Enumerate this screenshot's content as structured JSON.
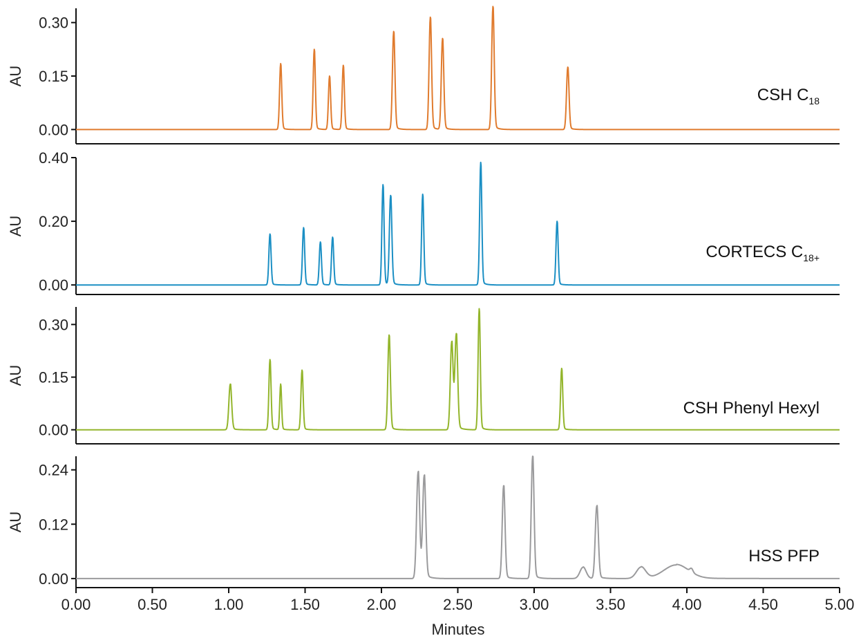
{
  "chart_data": {
    "type": "line",
    "xlabel": "Minutes",
    "xlim": [
      0,
      5
    ],
    "x_ticks": [
      "0.00",
      "0.50",
      "1.00",
      "1.50",
      "2.00",
      "2.50",
      "3.00",
      "3.50",
      "4.00",
      "4.50",
      "5.00"
    ],
    "panels": [
      {
        "label": "CSH C",
        "label_subscript": "18",
        "color": "#E07B2E",
        "ylabel": "AU",
        "ylim": [
          -0.04,
          0.34
        ],
        "y_ticks": [
          0.0,
          0.15,
          0.3
        ],
        "y_tick_labels": [
          "0.00",
          "0.15",
          "0.30"
        ],
        "peaks": [
          {
            "rt": 1.34,
            "height": 0.185,
            "width": 0.007
          },
          {
            "rt": 1.56,
            "height": 0.225,
            "width": 0.007
          },
          {
            "rt": 1.66,
            "height": 0.15,
            "width": 0.007
          },
          {
            "rt": 1.75,
            "height": 0.18,
            "width": 0.007
          },
          {
            "rt": 2.08,
            "height": 0.275,
            "width": 0.008
          },
          {
            "rt": 2.32,
            "height": 0.315,
            "width": 0.008
          },
          {
            "rt": 2.4,
            "height": 0.255,
            "width": 0.008
          },
          {
            "rt": 2.73,
            "height": 0.345,
            "width": 0.008
          },
          {
            "rt": 3.22,
            "height": 0.175,
            "width": 0.008
          }
        ]
      },
      {
        "label": "CORTECS C",
        "label_subscript": "18+",
        "color": "#1B8FC4",
        "ylabel": "AU",
        "ylim": [
          -0.03,
          0.4
        ],
        "y_ticks": [
          0.0,
          0.2,
          0.4
        ],
        "y_tick_labels": [
          "0.00",
          "0.20",
          "0.40"
        ],
        "peaks": [
          {
            "rt": 1.27,
            "height": 0.16,
            "width": 0.007
          },
          {
            "rt": 1.49,
            "height": 0.18,
            "width": 0.007
          },
          {
            "rt": 1.6,
            "height": 0.135,
            "width": 0.007
          },
          {
            "rt": 1.68,
            "height": 0.15,
            "width": 0.007
          },
          {
            "rt": 2.01,
            "height": 0.315,
            "width": 0.007
          },
          {
            "rt": 2.06,
            "height": 0.28,
            "width": 0.008
          },
          {
            "rt": 2.27,
            "height": 0.285,
            "width": 0.007
          },
          {
            "rt": 2.65,
            "height": 0.385,
            "width": 0.007
          },
          {
            "rt": 3.15,
            "height": 0.2,
            "width": 0.007
          }
        ]
      },
      {
        "label": "CSH Phenyl Hexyl",
        "label_subscript": "",
        "color": "#93B52B",
        "ylabel": "AU",
        "ylim": [
          -0.04,
          0.35
        ],
        "y_ticks": [
          0.0,
          0.15,
          0.3
        ],
        "y_tick_labels": [
          "0.00",
          "0.15",
          "0.30"
        ],
        "peaks": [
          {
            "rt": 1.01,
            "height": 0.13,
            "width": 0.009
          },
          {
            "rt": 1.27,
            "height": 0.2,
            "width": 0.007
          },
          {
            "rt": 1.34,
            "height": 0.13,
            "width": 0.006
          },
          {
            "rt": 1.48,
            "height": 0.17,
            "width": 0.007
          },
          {
            "rt": 2.05,
            "height": 0.27,
            "width": 0.008
          },
          {
            "rt": 2.46,
            "height": 0.25,
            "width": 0.009
          },
          {
            "rt": 2.49,
            "height": 0.27,
            "width": 0.009
          },
          {
            "rt": 2.64,
            "height": 0.345,
            "width": 0.007
          },
          {
            "rt": 3.18,
            "height": 0.175,
            "width": 0.007
          }
        ]
      },
      {
        "label": "HSS PFP",
        "label_subscript": "",
        "color": "#9A9A9C",
        "ylabel": "AU",
        "ylim": [
          -0.02,
          0.27
        ],
        "y_ticks": [
          0.0,
          0.12,
          0.24
        ],
        "y_tick_labels": [
          "0.00",
          "0.12",
          "0.24"
        ],
        "peaks": [
          {
            "rt": 2.24,
            "height": 0.235,
            "width": 0.01
          },
          {
            "rt": 2.28,
            "height": 0.225,
            "width": 0.01
          },
          {
            "rt": 2.8,
            "height": 0.205,
            "width": 0.009
          },
          {
            "rt": 2.99,
            "height": 0.27,
            "width": 0.009
          },
          {
            "rt": 3.32,
            "height": 0.025,
            "width": 0.02
          },
          {
            "rt": 3.41,
            "height": 0.16,
            "width": 0.01
          },
          {
            "rt": 3.7,
            "height": 0.025,
            "width": 0.03
          },
          {
            "rt": 3.93,
            "height": 0.03,
            "width": 0.08
          },
          {
            "rt": 4.03,
            "height": 0.008,
            "width": 0.01
          }
        ]
      }
    ]
  }
}
